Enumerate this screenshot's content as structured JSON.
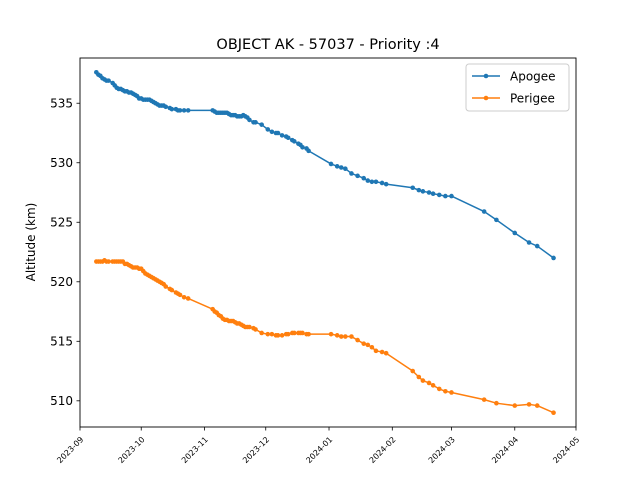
{
  "chart_data": {
    "type": "line",
    "title": "OBJECT AK - 57037 - Priority :4",
    "xlabel": "",
    "ylabel": "Altitude (km)",
    "xlim": [
      "2023-09-01",
      "2024-05-01"
    ],
    "ylim": [
      507.8,
      538.8
    ],
    "x_ticks": [
      "2023-09",
      "2023-10",
      "2023-11",
      "2023-12",
      "2024-01",
      "2024-02",
      "2024-03",
      "2024-04",
      "2024-05"
    ],
    "y_ticks": [
      510,
      515,
      520,
      525,
      530,
      535
    ],
    "grid": false,
    "legend_position": "top-right",
    "series": [
      {
        "name": "Apogee",
        "color": "#1f77b4",
        "points": [
          [
            "2023-09-09",
            537.6
          ],
          [
            "2023-09-10",
            537.4
          ],
          [
            "2023-09-11",
            537.3
          ],
          [
            "2023-09-12",
            537.1
          ],
          [
            "2023-09-13",
            537.0
          ],
          [
            "2023-09-14",
            536.9
          ],
          [
            "2023-09-15",
            536.9
          ],
          [
            "2023-09-17",
            536.7
          ],
          [
            "2023-09-18",
            536.5
          ],
          [
            "2023-09-19",
            536.3
          ],
          [
            "2023-09-20",
            536.2
          ],
          [
            "2023-09-21",
            536.2
          ],
          [
            "2023-09-22",
            536.1
          ],
          [
            "2023-09-23",
            536.0
          ],
          [
            "2023-09-24",
            536.0
          ],
          [
            "2023-09-25",
            535.9
          ],
          [
            "2023-09-26",
            535.9
          ],
          [
            "2023-09-27",
            535.8
          ],
          [
            "2023-09-28",
            535.7
          ],
          [
            "2023-09-29",
            535.6
          ],
          [
            "2023-09-30",
            535.4
          ],
          [
            "2023-10-01",
            535.4
          ],
          [
            "2023-10-02",
            535.3
          ],
          [
            "2023-10-03",
            535.3
          ],
          [
            "2023-10-04",
            535.3
          ],
          [
            "2023-10-05",
            535.3
          ],
          [
            "2023-10-06",
            535.2
          ],
          [
            "2023-10-07",
            535.1
          ],
          [
            "2023-10-08",
            535.0
          ],
          [
            "2023-10-09",
            534.9
          ],
          [
            "2023-10-10",
            534.8
          ],
          [
            "2023-10-11",
            534.8
          ],
          [
            "2023-10-12",
            534.8
          ],
          [
            "2023-10-13",
            534.7
          ],
          [
            "2023-10-15",
            534.6
          ],
          [
            "2023-10-16",
            534.5
          ],
          [
            "2023-10-18",
            534.5
          ],
          [
            "2023-10-19",
            534.4
          ],
          [
            "2023-10-20",
            534.4
          ],
          [
            "2023-10-22",
            534.4
          ],
          [
            "2023-10-24",
            534.4
          ],
          [
            "2023-11-05",
            534.4
          ],
          [
            "2023-11-06",
            534.3
          ],
          [
            "2023-11-07",
            534.2
          ],
          [
            "2023-11-08",
            534.2
          ],
          [
            "2023-11-09",
            534.2
          ],
          [
            "2023-11-10",
            534.2
          ],
          [
            "2023-11-11",
            534.2
          ],
          [
            "2023-11-12",
            534.2
          ],
          [
            "2023-11-13",
            534.1
          ],
          [
            "2023-11-14",
            534.0
          ],
          [
            "2023-11-15",
            534.0
          ],
          [
            "2023-11-16",
            534.0
          ],
          [
            "2023-11-17",
            533.9
          ],
          [
            "2023-11-18",
            533.9
          ],
          [
            "2023-11-19",
            533.9
          ],
          [
            "2023-11-20",
            534.0
          ],
          [
            "2023-11-21",
            533.9
          ],
          [
            "2023-11-22",
            533.8
          ],
          [
            "2023-11-23",
            533.6
          ],
          [
            "2023-11-25",
            533.4
          ],
          [
            "2023-11-26",
            533.4
          ],
          [
            "2023-11-29",
            533.2
          ],
          [
            "2023-12-02",
            532.8
          ],
          [
            "2023-12-04",
            532.6
          ],
          [
            "2023-12-06",
            532.5
          ],
          [
            "2023-12-07",
            532.5
          ],
          [
            "2023-12-09",
            532.3
          ],
          [
            "2023-12-11",
            532.2
          ],
          [
            "2023-12-12",
            532.1
          ],
          [
            "2023-12-14",
            531.9
          ],
          [
            "2023-12-15",
            531.8
          ],
          [
            "2023-12-17",
            531.6
          ],
          [
            "2023-12-18",
            531.5
          ],
          [
            "2023-12-19",
            531.3
          ],
          [
            "2023-12-21",
            531.2
          ],
          [
            "2023-12-22",
            531.0
          ],
          [
            "2024-01-02",
            529.9
          ],
          [
            "2024-01-05",
            529.7
          ],
          [
            "2024-01-07",
            529.6
          ],
          [
            "2024-01-09",
            529.5
          ],
          [
            "2024-01-12",
            529.1
          ],
          [
            "2024-01-15",
            528.9
          ],
          [
            "2024-01-18",
            528.7
          ],
          [
            "2024-01-20",
            528.5
          ],
          [
            "2024-01-22",
            528.4
          ],
          [
            "2024-01-24",
            528.4
          ],
          [
            "2024-01-27",
            528.3
          ],
          [
            "2024-01-29",
            528.2
          ],
          [
            "2024-02-11",
            527.9
          ],
          [
            "2024-02-14",
            527.7
          ],
          [
            "2024-02-16",
            527.6
          ],
          [
            "2024-02-19",
            527.5
          ],
          [
            "2024-02-21",
            527.4
          ],
          [
            "2024-02-24",
            527.3
          ],
          [
            "2024-02-27",
            527.2
          ],
          [
            "2024-03-01",
            527.2
          ],
          [
            "2024-03-17",
            525.9
          ],
          [
            "2024-03-23",
            525.2
          ],
          [
            "2024-04-01",
            524.1
          ],
          [
            "2024-04-08",
            523.3
          ],
          [
            "2024-04-12",
            523.0
          ],
          [
            "2024-04-20",
            522.0
          ]
        ]
      },
      {
        "name": "Perigee",
        "color": "#ff7f0e",
        "points": [
          [
            "2023-09-09",
            521.7
          ],
          [
            "2023-09-10",
            521.7
          ],
          [
            "2023-09-11",
            521.7
          ],
          [
            "2023-09-12",
            521.7
          ],
          [
            "2023-09-13",
            521.8
          ],
          [
            "2023-09-14",
            521.7
          ],
          [
            "2023-09-15",
            521.7
          ],
          [
            "2023-09-17",
            521.7
          ],
          [
            "2023-09-18",
            521.7
          ],
          [
            "2023-09-19",
            521.7
          ],
          [
            "2023-09-20",
            521.7
          ],
          [
            "2023-09-21",
            521.7
          ],
          [
            "2023-09-22",
            521.7
          ],
          [
            "2023-09-23",
            521.5
          ],
          [
            "2023-09-24",
            521.5
          ],
          [
            "2023-09-25",
            521.4
          ],
          [
            "2023-09-26",
            521.3
          ],
          [
            "2023-09-27",
            521.2
          ],
          [
            "2023-09-28",
            521.2
          ],
          [
            "2023-09-29",
            521.2
          ],
          [
            "2023-09-30",
            521.1
          ],
          [
            "2023-10-01",
            521.1
          ],
          [
            "2023-10-02",
            520.9
          ],
          [
            "2023-10-03",
            520.7
          ],
          [
            "2023-10-04",
            520.6
          ],
          [
            "2023-10-05",
            520.5
          ],
          [
            "2023-10-06",
            520.4
          ],
          [
            "2023-10-07",
            520.3
          ],
          [
            "2023-10-08",
            520.2
          ],
          [
            "2023-10-09",
            520.1
          ],
          [
            "2023-10-10",
            520.0
          ],
          [
            "2023-10-11",
            519.9
          ],
          [
            "2023-10-12",
            519.8
          ],
          [
            "2023-10-13",
            519.6
          ],
          [
            "2023-10-15",
            519.4
          ],
          [
            "2023-10-16",
            519.3
          ],
          [
            "2023-10-18",
            519.1
          ],
          [
            "2023-10-19",
            519.0
          ],
          [
            "2023-10-20",
            518.9
          ],
          [
            "2023-10-22",
            518.7
          ],
          [
            "2023-10-24",
            518.6
          ],
          [
            "2023-11-05",
            517.7
          ],
          [
            "2023-11-06",
            517.5
          ],
          [
            "2023-11-07",
            517.4
          ],
          [
            "2023-11-08",
            517.2
          ],
          [
            "2023-11-09",
            517.1
          ],
          [
            "2023-11-10",
            516.9
          ],
          [
            "2023-11-11",
            516.8
          ],
          [
            "2023-11-12",
            516.8
          ],
          [
            "2023-11-13",
            516.7
          ],
          [
            "2023-11-14",
            516.7
          ],
          [
            "2023-11-15",
            516.7
          ],
          [
            "2023-11-16",
            516.6
          ],
          [
            "2023-11-17",
            516.5
          ],
          [
            "2023-11-18",
            516.5
          ],
          [
            "2023-11-19",
            516.4
          ],
          [
            "2023-11-20",
            516.3
          ],
          [
            "2023-11-21",
            516.2
          ],
          [
            "2023-11-22",
            516.2
          ],
          [
            "2023-11-23",
            516.2
          ],
          [
            "2023-11-25",
            516.1
          ],
          [
            "2023-11-26",
            516.0
          ],
          [
            "2023-11-29",
            515.7
          ],
          [
            "2023-12-02",
            515.6
          ],
          [
            "2023-12-04",
            515.6
          ],
          [
            "2023-12-06",
            515.5
          ],
          [
            "2023-12-07",
            515.5
          ],
          [
            "2023-12-09",
            515.5
          ],
          [
            "2023-12-11",
            515.6
          ],
          [
            "2023-12-12",
            515.6
          ],
          [
            "2023-12-14",
            515.7
          ],
          [
            "2023-12-15",
            515.7
          ],
          [
            "2023-12-17",
            515.7
          ],
          [
            "2023-12-18",
            515.7
          ],
          [
            "2023-12-19",
            515.7
          ],
          [
            "2023-12-21",
            515.6
          ],
          [
            "2023-12-22",
            515.6
          ],
          [
            "2024-01-02",
            515.6
          ],
          [
            "2024-01-05",
            515.5
          ],
          [
            "2024-01-07",
            515.4
          ],
          [
            "2024-01-09",
            515.4
          ],
          [
            "2024-01-12",
            515.4
          ],
          [
            "2024-01-15",
            515.1
          ],
          [
            "2024-01-18",
            514.8
          ],
          [
            "2024-01-20",
            514.7
          ],
          [
            "2024-01-22",
            514.5
          ],
          [
            "2024-01-24",
            514.2
          ],
          [
            "2024-01-27",
            514.1
          ],
          [
            "2024-01-29",
            514.0
          ],
          [
            "2024-02-11",
            512.5
          ],
          [
            "2024-02-14",
            512.0
          ],
          [
            "2024-02-16",
            511.7
          ],
          [
            "2024-02-19",
            511.5
          ],
          [
            "2024-02-21",
            511.3
          ],
          [
            "2024-02-24",
            511.0
          ],
          [
            "2024-02-27",
            510.8
          ],
          [
            "2024-03-01",
            510.7
          ],
          [
            "2024-03-17",
            510.1
          ],
          [
            "2024-03-23",
            509.8
          ],
          [
            "2024-04-01",
            509.6
          ],
          [
            "2024-04-08",
            509.7
          ],
          [
            "2024-04-12",
            509.6
          ],
          [
            "2024-04-20",
            509.0
          ]
        ]
      }
    ]
  }
}
